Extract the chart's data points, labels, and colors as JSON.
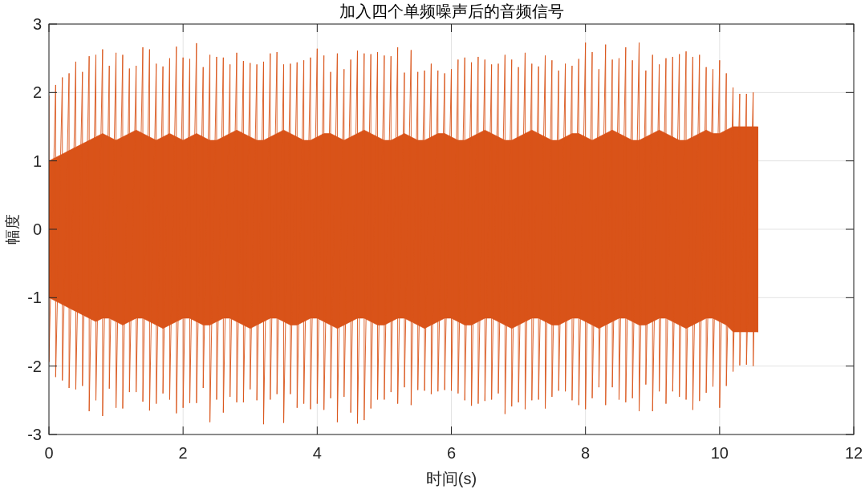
{
  "chart_data": {
    "type": "line",
    "title": "加入四个单频噪声后的音频信号",
    "xlabel": "时间(s)",
    "ylabel": "幅度",
    "xlim": [
      0,
      12
    ],
    "ylim": [
      -3,
      3
    ],
    "xticks": [
      0,
      2,
      4,
      6,
      8,
      10,
      12
    ],
    "yticks": [
      -3,
      -2,
      -1,
      0,
      1,
      2,
      3
    ],
    "grid": true,
    "series": [
      {
        "color": "#d95319",
        "x": [
          0,
          0,
          0.1,
          0.1,
          0.2,
          0.2,
          0.3,
          0.3,
          0.4,
          0.4,
          0.5,
          0.5,
          0.6,
          0.6,
          0.7,
          0.7,
          0.8,
          0.8,
          0.9,
          0.9,
          1,
          1,
          1.1,
          1.1,
          1.2,
          1.2,
          1.3,
          1.3,
          1.4,
          1.4,
          1.5,
          1.5,
          1.6,
          1.6,
          1.7,
          1.7,
          1.8,
          1.8,
          1.9,
          1.9,
          2,
          2,
          2.1,
          2.1,
          2.2,
          2.2,
          2.3,
          2.3,
          2.4,
          2.4,
          2.5,
          2.5,
          2.6,
          2.6,
          2.7,
          2.7,
          2.8,
          2.8,
          2.9,
          2.9,
          3,
          3,
          3.1,
          3.1,
          3.2,
          3.2,
          3.3,
          3.3,
          3.4,
          3.4,
          3.5,
          3.5,
          3.6,
          3.6,
          3.7,
          3.7,
          3.8,
          3.8,
          3.9,
          3.9,
          4,
          4,
          4.1,
          4.1,
          4.2,
          4.2,
          4.3,
          4.3,
          4.4,
          4.4,
          4.5,
          4.5,
          4.6,
          4.6,
          4.7,
          4.7,
          4.8,
          4.8,
          4.9,
          4.9,
          5,
          5,
          5.1,
          5.1,
          5.2,
          5.2,
          5.3,
          5.3,
          5.4,
          5.4,
          5.5,
          5.5,
          5.6,
          5.6,
          5.7,
          5.7,
          5.8,
          5.8,
          5.9,
          5.9,
          6,
          6,
          6.1,
          6.1,
          6.2,
          6.2,
          6.3,
          6.3,
          6.4,
          6.4,
          6.5,
          6.5,
          6.6,
          6.6,
          6.7,
          6.7,
          6.8,
          6.8,
          6.9,
          6.9,
          7,
          7,
          7.1,
          7.1,
          7.2,
          7.2,
          7.3,
          7.3,
          7.4,
          7.4,
          7.5,
          7.5,
          7.6,
          7.6,
          7.7,
          7.7,
          7.8,
          7.8,
          7.9,
          7.9,
          8,
          8,
          8.1,
          8.1,
          8.2,
          8.2,
          8.3,
          8.3,
          8.4,
          8.4,
          8.5,
          8.5,
          8.6,
          8.6,
          8.7,
          8.7,
          8.8,
          8.8,
          8.9,
          8.9,
          9,
          9,
          9.1,
          9.1,
          9.2,
          9.2,
          9.3,
          9.3,
          9.4,
          9.4,
          9.5,
          9.5,
          9.6,
          9.6,
          9.7,
          9.7,
          9.8,
          9.8,
          9.9,
          9.9,
          10,
          10,
          10.1,
          10.1,
          10.2,
          10.2,
          10.3,
          10.3,
          10.4,
          10.4,
          10.5,
          10.5,
          10.57,
          10.57
        ],
        "values": [
          1.95,
          -1.94,
          2.11,
          -2.16,
          2.22,
          -2.21,
          2.28,
          -2.32,
          2.45,
          -2.34,
          2.3,
          -2.29,
          2.53,
          -2.66,
          2.55,
          -2.5,
          2.63,
          -2.73,
          2.39,
          -2.33,
          2.58,
          -2.61,
          2.55,
          -2.62,
          2.35,
          -2.38,
          2.39,
          -2.38,
          2.66,
          -2.52,
          2.63,
          -2.65,
          2.42,
          -2.55,
          2.38,
          -2.4,
          2.5,
          -2.49,
          2.67,
          -2.69,
          2.51,
          -2.61,
          2.49,
          -2.54,
          2.72,
          -2.54,
          2.37,
          -2.32,
          2.55,
          -2.82,
          2.52,
          -2.49,
          2.51,
          -2.68,
          2.41,
          -2.45,
          2.58,
          -2.53,
          2.46,
          -2.53,
          2.43,
          -2.34,
          2.41,
          -2.5,
          2.45,
          -2.85,
          2.57,
          -2.49,
          2.59,
          -2.41,
          2.41,
          -2.83,
          2.42,
          -2.41,
          2.44,
          -2.61,
          2.47,
          -2.55,
          2.51,
          -2.63,
          2.64,
          -2.55,
          2.54,
          -2.64,
          2.3,
          -2.47,
          2.57,
          -2.82,
          2.34,
          -2.45,
          2.48,
          -2.68,
          2.61,
          -2.84,
          2.57,
          -2.79,
          2.56,
          -2.62,
          2.59,
          -2.49,
          2.54,
          -2.49,
          2.53,
          -2.38,
          2.66,
          -2.55,
          2.29,
          -2.31,
          2.62,
          -2.57,
          2.3,
          -2.35,
          2.32,
          -2.36,
          2.42,
          -2.41,
          2.32,
          -2.37,
          2.28,
          -2.35,
          2.34,
          -2.36,
          2.48,
          -2.4,
          2.51,
          -2.5,
          2.44,
          -2.58,
          2.52,
          -2.55,
          2.48,
          -2.51,
          2.41,
          -2.49,
          2.42,
          -2.4,
          2.55,
          -2.7,
          2.48,
          -2.59,
          2.37,
          -2.53,
          2.58,
          -2.63,
          2.42,
          -2.5,
          2.38,
          -2.49,
          2.54,
          -2.62,
          2.47,
          -2.45,
          2.32,
          -2.36,
          2.42,
          -2.37,
          2.39,
          -2.5,
          2.49,
          -2.57,
          2.73,
          -2.63,
          2.59,
          -2.47,
          2.34,
          -2.31,
          2.7,
          -2.57,
          2.48,
          -2.31,
          2.5,
          -2.49,
          2.66,
          -2.53,
          2.47,
          -2.47,
          2.73,
          -2.66,
          2.32,
          -2.27,
          2.55,
          -2.66,
          2.41,
          -2.37,
          2.5,
          -2.55,
          2.52,
          -2.37,
          2.56,
          -2.45,
          2.6,
          -2.49,
          2.52,
          -2.64,
          2.55,
          -2.51,
          2.37,
          -2.39,
          2.34,
          -2.3,
          2.47,
          -2.61,
          2.28,
          -2.29,
          2.07,
          -2.08,
          1.98,
          -1.99,
          1.98,
          -1.98,
          2.0,
          -2.0,
          1.5,
          -1.5
        ],
        "upper": [
          1.0,
          1.0,
          1.05,
          1.05,
          1.1,
          1.1,
          1.15,
          1.15,
          1.2,
          1.2,
          1.25,
          1.25,
          1.3,
          1.3,
          1.35,
          1.35,
          1.4,
          1.4,
          1.35,
          1.35,
          1.3,
          1.3,
          1.35,
          1.35,
          1.4,
          1.4,
          1.45,
          1.45,
          1.4,
          1.4,
          1.35,
          1.35,
          1.3,
          1.3,
          1.35,
          1.35,
          1.4,
          1.4,
          1.35,
          1.35,
          1.3,
          1.3,
          1.35,
          1.35,
          1.4,
          1.4,
          1.35,
          1.35,
          1.3,
          1.3,
          1.3,
          1.3,
          1.35,
          1.35,
          1.4,
          1.4,
          1.45,
          1.45,
          1.4,
          1.4,
          1.35,
          1.35,
          1.3,
          1.3,
          1.3,
          1.3,
          1.35,
          1.35,
          1.4,
          1.4,
          1.45,
          1.45,
          1.4,
          1.4,
          1.35,
          1.35,
          1.3,
          1.3,
          1.3,
          1.3,
          1.35,
          1.35,
          1.4,
          1.4,
          1.4,
          1.4,
          1.35,
          1.35,
          1.3,
          1.3,
          1.35,
          1.35,
          1.4,
          1.4,
          1.45,
          1.45,
          1.4,
          1.4,
          1.35,
          1.35,
          1.3,
          1.3,
          1.3,
          1.3,
          1.35,
          1.35,
          1.4,
          1.4,
          1.35,
          1.35,
          1.3,
          1.3,
          1.3,
          1.3,
          1.35,
          1.35,
          1.4,
          1.4,
          1.4,
          1.4,
          1.35,
          1.35,
          1.3,
          1.3,
          1.3,
          1.3,
          1.35,
          1.35,
          1.4,
          1.4,
          1.45,
          1.45,
          1.4,
          1.4,
          1.35,
          1.35,
          1.3,
          1.3,
          1.3,
          1.3,
          1.35,
          1.35,
          1.4,
          1.4,
          1.45,
          1.45,
          1.4,
          1.4,
          1.35,
          1.35,
          1.3,
          1.3,
          1.3,
          1.3,
          1.35,
          1.35,
          1.4,
          1.4,
          1.4,
          1.4,
          1.35,
          1.35,
          1.3,
          1.3,
          1.35,
          1.35,
          1.4,
          1.4,
          1.45,
          1.45,
          1.4,
          1.4,
          1.35,
          1.35,
          1.3,
          1.3,
          1.3,
          1.3,
          1.35,
          1.35,
          1.4,
          1.4,
          1.45,
          1.45,
          1.4,
          1.4,
          1.35,
          1.35,
          1.3,
          1.3,
          1.3,
          1.3,
          1.35,
          1.35,
          1.4,
          1.4,
          1.45,
          1.45,
          1.4,
          1.4,
          1.4,
          1.4,
          1.45,
          1.45,
          1.5,
          1.5,
          1.5,
          1.5,
          1.5,
          1.5,
          1.5,
          1.5,
          1.5,
          1.5
        ],
        "lower": [
          -1.0,
          -1.0,
          -1.05,
          -1.05,
          -1.1,
          -1.1,
          -1.15,
          -1.15,
          -1.2,
          -1.2,
          -1.25,
          -1.25,
          -1.3,
          -1.3,
          -1.35,
          -1.35,
          -1.3,
          -1.3,
          -1.3,
          -1.3,
          -1.35,
          -1.35,
          -1.4,
          -1.4,
          -1.35,
          -1.35,
          -1.3,
          -1.3,
          -1.3,
          -1.3,
          -1.35,
          -1.35,
          -1.4,
          -1.4,
          -1.45,
          -1.45,
          -1.4,
          -1.4,
          -1.35,
          -1.35,
          -1.3,
          -1.3,
          -1.3,
          -1.3,
          -1.35,
          -1.35,
          -1.4,
          -1.4,
          -1.4,
          -1.4,
          -1.35,
          -1.35,
          -1.3,
          -1.3,
          -1.3,
          -1.3,
          -1.35,
          -1.35,
          -1.4,
          -1.4,
          -1.45,
          -1.45,
          -1.4,
          -1.4,
          -1.35,
          -1.35,
          -1.3,
          -1.3,
          -1.3,
          -1.3,
          -1.35,
          -1.35,
          -1.4,
          -1.4,
          -1.4,
          -1.4,
          -1.35,
          -1.35,
          -1.3,
          -1.3,
          -1.3,
          -1.3,
          -1.35,
          -1.35,
          -1.4,
          -1.4,
          -1.45,
          -1.45,
          -1.4,
          -1.4,
          -1.35,
          -1.35,
          -1.3,
          -1.3,
          -1.3,
          -1.3,
          -1.35,
          -1.35,
          -1.4,
          -1.4,
          -1.4,
          -1.4,
          -1.35,
          -1.35,
          -1.3,
          -1.3,
          -1.3,
          -1.3,
          -1.35,
          -1.35,
          -1.4,
          -1.4,
          -1.45,
          -1.45,
          -1.4,
          -1.4,
          -1.35,
          -1.35,
          -1.3,
          -1.3,
          -1.3,
          -1.3,
          -1.35,
          -1.35,
          -1.4,
          -1.4,
          -1.4,
          -1.4,
          -1.35,
          -1.35,
          -1.3,
          -1.3,
          -1.3,
          -1.3,
          -1.35,
          -1.35,
          -1.4,
          -1.4,
          -1.45,
          -1.45,
          -1.4,
          -1.4,
          -1.35,
          -1.35,
          -1.3,
          -1.3,
          -1.3,
          -1.3,
          -1.35,
          -1.35,
          -1.4,
          -1.4,
          -1.4,
          -1.4,
          -1.35,
          -1.35,
          -1.3,
          -1.3,
          -1.3,
          -1.3,
          -1.35,
          -1.35,
          -1.4,
          -1.4,
          -1.45,
          -1.45,
          -1.4,
          -1.4,
          -1.35,
          -1.35,
          -1.3,
          -1.3,
          -1.3,
          -1.3,
          -1.35,
          -1.35,
          -1.4,
          -1.4,
          -1.4,
          -1.4,
          -1.35,
          -1.35,
          -1.3,
          -1.3,
          -1.3,
          -1.3,
          -1.35,
          -1.35,
          -1.4,
          -1.4,
          -1.45,
          -1.45,
          -1.4,
          -1.4,
          -1.35,
          -1.35,
          -1.3,
          -1.3,
          -1.3,
          -1.3,
          -1.35,
          -1.35,
          -1.4,
          -1.4,
          -1.5,
          -1.5,
          -1.5,
          -1.5,
          -1.5,
          -1.5,
          -1.5,
          -1.5,
          -1.5,
          -1.5
        ]
      }
    ]
  }
}
